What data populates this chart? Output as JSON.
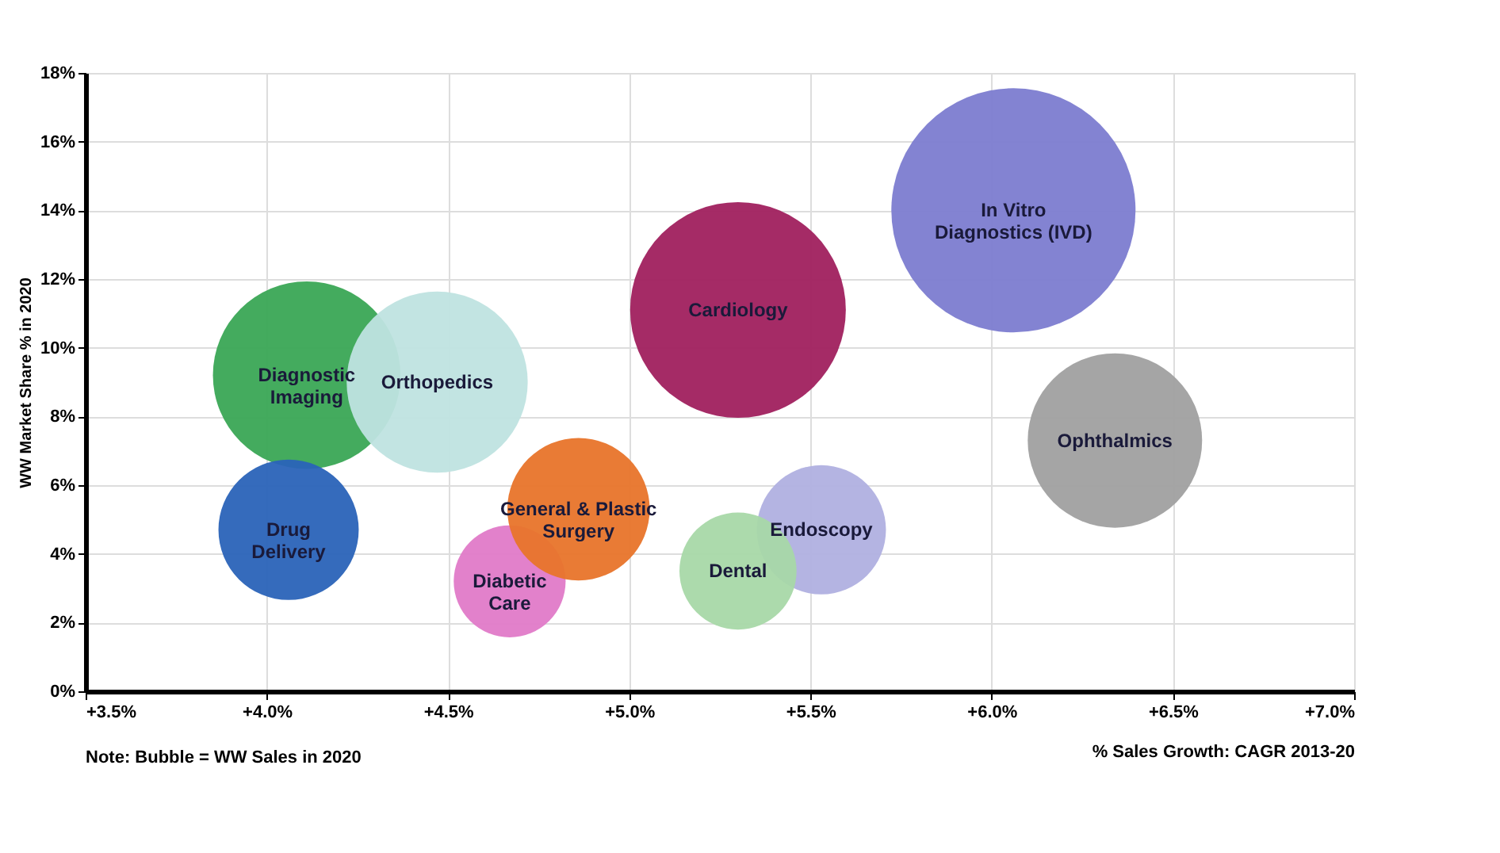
{
  "chart_data": {
    "type": "bubble",
    "xlabel": "% Sales Growth: CAGR 2013-20",
    "ylabel": "WW Market Share % in 2020",
    "annotations": [
      "Note: Bubble = WW Sales in 2020"
    ],
    "xlim": [
      3.5,
      7.0
    ],
    "ylim": [
      0,
      18
    ],
    "xticks": [
      {
        "value": 3.5,
        "label": "+3.5%"
      },
      {
        "value": 4.0,
        "label": "+4.0%"
      },
      {
        "value": 4.5,
        "label": "+4.5%"
      },
      {
        "value": 5.0,
        "label": "+5.0%"
      },
      {
        "value": 5.5,
        "label": "+5.5%"
      },
      {
        "value": 6.0,
        "label": "+6.0%"
      },
      {
        "value": 6.5,
        "label": "+6.5%"
      },
      {
        "value": 7.0,
        "label": "+7.0%"
      }
    ],
    "yticks": [
      {
        "value": 0,
        "label": "0%"
      },
      {
        "value": 2,
        "label": "2%"
      },
      {
        "value": 4,
        "label": "4%"
      },
      {
        "value": 6,
        "label": "6%"
      },
      {
        "value": 8,
        "label": "8%"
      },
      {
        "value": 10,
        "label": "10%"
      },
      {
        "value": 12,
        "label": "12%"
      },
      {
        "value": 14,
        "label": "14%"
      },
      {
        "value": 16,
        "label": "16%"
      },
      {
        "value": 18,
        "label": "18%"
      }
    ],
    "grid": true,
    "legend": false,
    "series": [
      {
        "name": "Diagnostic\nImaging",
        "color": "#3aa655",
        "x": [
          4.11
        ],
        "values": [
          9.2
        ],
        "sizes": [
          0.59
        ]
      },
      {
        "name": "Orthopedics",
        "color": "#bfe3e0",
        "x": [
          4.47
        ],
        "values": [
          9.0
        ],
        "sizes": [
          0.55
        ]
      },
      {
        "name": "Drug\nDelivery",
        "color": "#2a63b8",
        "x": [
          4.06
        ],
        "values": [
          4.7
        ],
        "sizes": [
          0.33
        ]
      },
      {
        "name": "Diabetic\nCare",
        "color": "#e07ac8",
        "x": [
          4.67
        ],
        "values": [
          3.2
        ],
        "sizes": [
          0.21
        ]
      },
      {
        "name": "General & Plastic\nSurgery",
        "color": "#e8742a",
        "x": [
          4.86
        ],
        "values": [
          5.3
        ],
        "sizes": [
          0.34
        ]
      },
      {
        "name": "Endoscopy",
        "color": "#b0b0e0",
        "x": [
          5.53
        ],
        "values": [
          4.7
        ],
        "sizes": [
          0.28
        ]
      },
      {
        "name": "Dental",
        "color": "#a8d8a8",
        "x": [
          5.3
        ],
        "values": [
          3.5
        ],
        "sizes": [
          0.23
        ]
      },
      {
        "name": "Cardiology",
        "color": "#a0205e",
        "x": [
          5.3
        ],
        "values": [
          11.1
        ],
        "sizes": [
          0.78
        ]
      },
      {
        "name": "In Vitro\nDiagnostics (IVD)",
        "color": "#7c7cd0",
        "x": [
          6.06
        ],
        "values": [
          14.0
        ],
        "sizes": [
          1
        ]
      },
      {
        "name": "Ophthalmics",
        "color": "#a0a0a0",
        "x": [
          6.34
        ],
        "values": [
          7.3
        ],
        "sizes": [
          0.51
        ]
      }
    ]
  }
}
